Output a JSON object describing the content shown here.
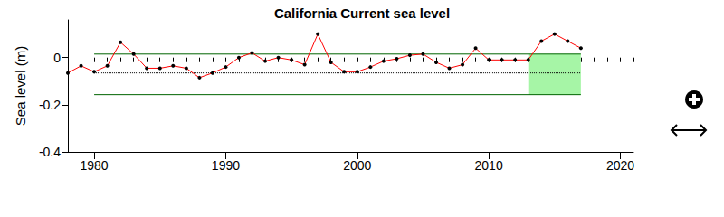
{
  "chart_data": {
    "type": "line",
    "title": "California Current sea level",
    "y_label": "Sea level (m)",
    "x": [
      1978,
      1979,
      1980,
      1981,
      1982,
      1983,
      1984,
      1985,
      1986,
      1987,
      1988,
      1989,
      1990,
      1991,
      1992,
      1993,
      1994,
      1995,
      1996,
      1997,
      1998,
      1999,
      2000,
      2001,
      2002,
      2003,
      2004,
      2005,
      2006,
      2007,
      2008,
      2009,
      2010,
      2011,
      2012,
      2013,
      2014,
      2015,
      2016,
      2017
    ],
    "values": [
      -0.065,
      -0.035,
      -0.06,
      -0.035,
      0.065,
      0.015,
      -0.045,
      -0.045,
      -0.035,
      -0.045,
      -0.085,
      -0.065,
      -0.04,
      0,
      0.02,
      -0.015,
      0,
      -0.01,
      -0.03,
      0.1,
      -0.02,
      -0.06,
      -0.06,
      -0.04,
      -0.015,
      -0.005,
      0.01,
      0.015,
      -0.02,
      -0.045,
      -0.03,
      0.04,
      -0.01,
      -0.01,
      -0.01,
      -0.01,
      0.07,
      0.1,
      0.07,
      0.04
    ],
    "color": "#ff0000",
    "marker": "circle",
    "xlim": [
      1978,
      2021
    ],
    "xticks": [
      1980,
      1990,
      2000,
      2010,
      2020
    ],
    "ylim": [
      -0.4,
      0.16
    ],
    "yticks": [
      -0.4,
      -0.2,
      0
    ],
    "grid": false,
    "reference_lines": [
      {
        "value": 0.015,
        "x": [
          1980,
          2017
        ],
        "line_style": "solid",
        "color": "#006400"
      },
      {
        "value": -0.065,
        "x": [
          1980,
          2017
        ],
        "line_style": "dotted",
        "color": "#000000"
      },
      {
        "value": -0.157,
        "x": [
          1980,
          2017
        ],
        "line_style": "solid",
        "color": "#006400"
      }
    ],
    "shaded_region": {
      "x": [
        2013,
        2017
      ],
      "y": [
        -0.157,
        0.015
      ],
      "color": "#a6f5a6"
    }
  }
}
